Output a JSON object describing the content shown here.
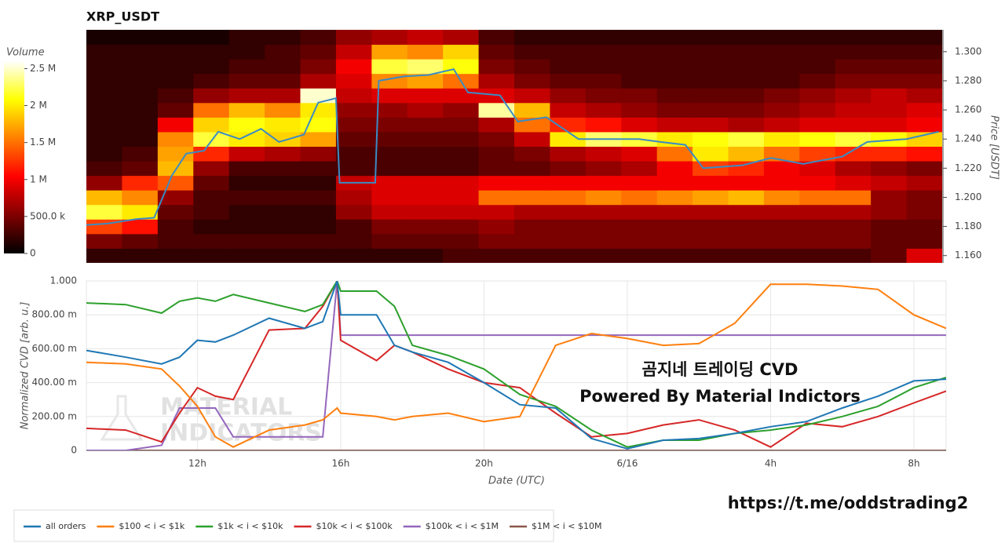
{
  "chart_data": [
    {
      "type": "heatmap",
      "title": "XRP_USDT",
      "ylabel": "Price [USDT]",
      "xlim": [
        8.9,
        32.9
      ],
      "ylim": [
        1.155,
        1.315
      ],
      "yticks": [
        {
          "value": 1.16,
          "label": "1.160"
        },
        {
          "value": 1.18,
          "label": "1.180"
        },
        {
          "value": 1.2,
          "label": "1.200"
        },
        {
          "value": 1.22,
          "label": "1.220"
        },
        {
          "value": 1.24,
          "label": "1.240"
        },
        {
          "value": 1.26,
          "label": "1.260"
        },
        {
          "value": 1.28,
          "label": "1.280"
        },
        {
          "value": 1.3,
          "label": "1.300"
        }
      ],
      "x_bins": [
        8.9,
        9.9,
        10.9,
        11.9,
        12.9,
        13.9,
        14.9,
        15.9,
        16.9,
        17.9,
        18.9,
        19.9,
        20.9,
        21.9,
        22.9,
        23.9,
        24.9,
        25.9,
        26.9,
        27.9,
        28.9,
        29.9,
        30.9,
        31.9,
        32.9
      ],
      "y_bins": [
        1.155,
        1.165,
        1.175,
        1.185,
        1.195,
        1.205,
        1.215,
        1.225,
        1.235,
        1.245,
        1.255,
        1.265,
        1.275,
        1.285,
        1.295,
        1.305,
        1.315
      ],
      "values": [
        [
          200000,
          200000,
          200000,
          200000,
          200000,
          200000,
          200000,
          200000,
          200000,
          200000,
          300000,
          300000,
          300000,
          300000,
          300000,
          300000,
          300000,
          300000,
          300000,
          300000,
          300000,
          300000,
          400000,
          900000
        ],
        [
          500000,
          400000,
          300000,
          300000,
          300000,
          300000,
          300000,
          300000,
          400000,
          400000,
          400000,
          500000,
          500000,
          500000,
          500000,
          500000,
          500000,
          500000,
          500000,
          500000,
          500000,
          500000,
          400000,
          400000
        ],
        [
          1300000,
          1100000,
          300000,
          200000,
          200000,
          200000,
          200000,
          300000,
          500000,
          500000,
          500000,
          600000,
          500000,
          500000,
          500000,
          500000,
          500000,
          500000,
          500000,
          500000,
          500000,
          500000,
          400000,
          400000
        ],
        [
          2200000,
          2000000,
          400000,
          300000,
          200000,
          200000,
          200000,
          600000,
          800000,
          800000,
          800000,
          800000,
          700000,
          700000,
          700000,
          700000,
          700000,
          700000,
          700000,
          700000,
          700000,
          700000,
          600000,
          500000
        ],
        [
          1800000,
          1600000,
          600000,
          300000,
          300000,
          300000,
          300000,
          700000,
          900000,
          900000,
          900000,
          1500000,
          1500000,
          1500000,
          1600000,
          1500000,
          1600000,
          1700000,
          1800000,
          1600000,
          1500000,
          1500000,
          600000,
          500000
        ],
        [
          600000,
          1200000,
          1400000,
          400000,
          200000,
          200000,
          200000,
          800000,
          900000,
          900000,
          900000,
          1000000,
          1000000,
          1000000,
          1000000,
          1000000,
          1000000,
          1000000,
          1000000,
          1000000,
          1000000,
          900000,
          800000,
          700000
        ],
        [
          300000,
          400000,
          1800000,
          600000,
          300000,
          300000,
          300000,
          300000,
          300000,
          300000,
          300000,
          400000,
          400000,
          500000,
          600000,
          700000,
          1000000,
          1300000,
          1200000,
          1000000,
          900000,
          700000,
          600000,
          500000
        ],
        [
          200000,
          300000,
          1700000,
          1200000,
          800000,
          700000,
          600000,
          300000,
          300000,
          300000,
          300000,
          400000,
          500000,
          700000,
          800000,
          900000,
          1500000,
          2000000,
          1800000,
          1500000,
          1300000,
          1200000,
          1200000,
          1100000
        ],
        [
          200000,
          200000,
          1600000,
          2200000,
          2000000,
          1900000,
          1700000,
          400000,
          400000,
          400000,
          400000,
          500000,
          800000,
          2000000,
          2300000,
          2200000,
          2000000,
          2100000,
          2200000,
          2000000,
          2100000,
          2200000,
          2100000,
          1900000
        ],
        [
          200000,
          200000,
          1000000,
          1900000,
          2100000,
          2000000,
          2100000,
          500000,
          500000,
          500000,
          500000,
          700000,
          1500000,
          1200000,
          1100000,
          900000,
          800000,
          800000,
          700000,
          800000,
          900000,
          900000,
          900000,
          1000000
        ],
        [
          200000,
          200000,
          400000,
          1500000,
          1800000,
          1600000,
          2000000,
          600000,
          600000,
          700000,
          600000,
          2400000,
          1800000,
          800000,
          700000,
          600000,
          500000,
          500000,
          500000,
          600000,
          700000,
          800000,
          800000,
          900000
        ],
        [
          200000,
          200000,
          300000,
          600000,
          700000,
          700000,
          2500000,
          800000,
          900000,
          900000,
          900000,
          900000,
          800000,
          600000,
          500000,
          500000,
          400000,
          400000,
          400000,
          500000,
          600000,
          700000,
          800000,
          700000
        ],
        [
          200000,
          200000,
          200000,
          300000,
          400000,
          400000,
          700000,
          900000,
          1600000,
          1700000,
          1500000,
          700000,
          500000,
          400000,
          400000,
          300000,
          300000,
          300000,
          300000,
          300000,
          400000,
          500000,
          500000,
          500000
        ],
        [
          200000,
          200000,
          200000,
          200000,
          300000,
          300000,
          500000,
          1000000,
          2200000,
          2300000,
          2100000,
          500000,
          400000,
          300000,
          300000,
          300000,
          300000,
          300000,
          300000,
          300000,
          300000,
          400000,
          400000,
          400000
        ],
        [
          200000,
          200000,
          200000,
          200000,
          200000,
          300000,
          400000,
          800000,
          1700000,
          1600000,
          1900000,
          400000,
          300000,
          300000,
          300000,
          300000,
          300000,
          300000,
          300000,
          300000,
          300000,
          300000,
          300000,
          300000
        ],
        [
          100000,
          100000,
          100000,
          100000,
          200000,
          200000,
          300000,
          600000,
          700000,
          800000,
          700000,
          300000,
          200000,
          200000,
          200000,
          200000,
          200000,
          200000,
          200000,
          200000,
          200000,
          200000,
          200000,
          200000
        ]
      ],
      "colorbar": {
        "title": "Volume",
        "clim": [
          0,
          2600000
        ],
        "ticks": [
          0,
          {
            "value": 500000,
            "label": "500.0 k"
          },
          {
            "value": 1000000,
            "label": "1 M"
          },
          {
            "value": 1500000,
            "label": "1.5 M"
          },
          {
            "value": 2000000,
            "label": "2 M"
          },
          {
            "value": 2500000,
            "label": "2.5 M"
          }
        ]
      },
      "line": {
        "color": "#3b8bc4",
        "x": [
          8.9,
          9.5,
          10.3,
          10.8,
          11.3,
          11.7,
          12.2,
          12.6,
          13.2,
          13.8,
          14.3,
          15.0,
          15.4,
          15.9,
          16.0,
          16.5,
          17.0,
          17.1,
          17.8,
          18.5,
          19.2,
          19.6,
          20.5,
          21.0,
          21.8,
          22.7,
          23.5,
          24.4,
          25.0,
          25.7,
          26.2,
          27.3,
          28.1,
          29.0,
          30.1,
          30.8,
          31.9,
          32.8
        ],
        "values": [
          1.181,
          1.182,
          1.185,
          1.186,
          1.215,
          1.23,
          1.232,
          1.245,
          1.24,
          1.247,
          1.238,
          1.243,
          1.265,
          1.268,
          1.21,
          1.21,
          1.21,
          1.28,
          1.283,
          1.284,
          1.288,
          1.272,
          1.27,
          1.252,
          1.255,
          1.24,
          1.24,
          1.24,
          1.238,
          1.236,
          1.22,
          1.222,
          1.227,
          1.223,
          1.228,
          1.238,
          1.24,
          1.245
        ]
      }
    },
    {
      "type": "line",
      "xlabel": "Date (UTC)",
      "ylabel": "Normalized CVD [arb. u.]",
      "grid": true,
      "legend": "bottom",
      "xlim": [
        8.9,
        32.9
      ],
      "ylim": [
        0,
        1
      ],
      "xticks": [
        {
          "value": 12,
          "label": "12h"
        },
        {
          "value": 16,
          "label": "16h"
        },
        {
          "value": 20,
          "label": "20h"
        },
        {
          "value": 24,
          "label": "6/16"
        },
        {
          "value": 28,
          "label": "4h"
        },
        {
          "value": 32,
          "label": "8h"
        }
      ],
      "yticks": [
        0,
        {
          "value": 0.2,
          "label": "200.00 m"
        },
        {
          "value": 0.4,
          "label": "400.00 m"
        },
        {
          "value": 0.6,
          "label": "600.00 m"
        },
        {
          "value": 0.8,
          "label": "800.00 m"
        },
        {
          "value": 1,
          "label": "1.000"
        }
      ],
      "x": [
        8.9,
        10,
        11,
        11.5,
        12,
        12.5,
        13,
        14,
        15,
        15.5,
        15.9,
        16,
        17,
        17.5,
        18,
        19,
        20,
        21,
        22,
        23,
        24,
        25,
        26,
        27,
        28,
        29,
        30,
        31,
        32,
        32.9
      ],
      "series": [
        {
          "name": "all orders",
          "color": "#1f77b4",
          "values": [
            0.59,
            0.55,
            0.51,
            0.55,
            0.65,
            0.64,
            0.68,
            0.78,
            0.72,
            0.76,
            1.0,
            0.8,
            0.8,
            0.62,
            0.58,
            0.52,
            0.4,
            0.27,
            0.25,
            0.07,
            0.01,
            0.06,
            0.07,
            0.1,
            0.14,
            0.17,
            0.25,
            0.32,
            0.41,
            0.42
          ]
        },
        {
          "name": "$100 < i < $1k",
          "color": "#ff7f0e",
          "values": [
            0.52,
            0.51,
            0.48,
            0.38,
            0.26,
            0.08,
            0.02,
            0.12,
            0.15,
            0.18,
            0.25,
            0.22,
            0.2,
            0.18,
            0.2,
            0.22,
            0.17,
            0.2,
            0.62,
            0.69,
            0.66,
            0.62,
            0.63,
            0.75,
            0.98,
            0.98,
            0.97,
            0.95,
            0.8,
            0.72
          ]
        },
        {
          "name": "$1k < i < $10k",
          "color": "#2ca02c",
          "values": [
            0.87,
            0.86,
            0.81,
            0.88,
            0.9,
            0.88,
            0.92,
            0.87,
            0.82,
            0.86,
            1.0,
            0.94,
            0.94,
            0.85,
            0.62,
            0.56,
            0.48,
            0.33,
            0.26,
            0.12,
            0.02,
            0.06,
            0.06,
            0.1,
            0.12,
            0.15,
            0.2,
            0.26,
            0.37,
            0.43
          ]
        },
        {
          "name": "$10k < i < $100k",
          "color": "#d62728",
          "values": [
            0.13,
            0.12,
            0.05,
            0.22,
            0.37,
            0.32,
            0.3,
            0.71,
            0.72,
            0.85,
            1.0,
            0.65,
            0.53,
            0.62,
            0.58,
            0.48,
            0.4,
            0.37,
            0.22,
            0.08,
            0.1,
            0.15,
            0.18,
            0.12,
            0.02,
            0.16,
            0.14,
            0.2,
            0.28,
            0.35
          ]
        },
        {
          "name": "$100k < i < $1M",
          "color": "#9467bd",
          "values": [
            0,
            0,
            0.03,
            0.25,
            0.25,
            0.25,
            0.08,
            0.08,
            0.08,
            0.08,
            1.0,
            0.68,
            0.68,
            0.68,
            0.68,
            0.68,
            0.68,
            0.68,
            0.68,
            0.68,
            0.68,
            0.68,
            0.68,
            0.68,
            0.68,
            0.68,
            0.68,
            0.68,
            0.68,
            0.68
          ]
        },
        {
          "name": "$1M < i < $10M",
          "color": "#8c564b",
          "values": [
            0,
            0,
            0,
            0,
            0,
            0,
            0,
            0,
            0,
            0,
            0,
            0,
            0,
            0,
            0,
            0,
            0,
            0,
            0,
            0,
            0,
            0,
            0,
            0,
            0,
            0,
            0,
            0,
            0,
            0
          ]
        }
      ],
      "annotations": [
        "곰지네 트레이딩 CVD",
        "Powered By Material Indictors"
      ],
      "watermark": [
        "MATERIAL",
        "INDICATORS"
      ]
    }
  ],
  "link": "https://t.me/oddstrading2"
}
